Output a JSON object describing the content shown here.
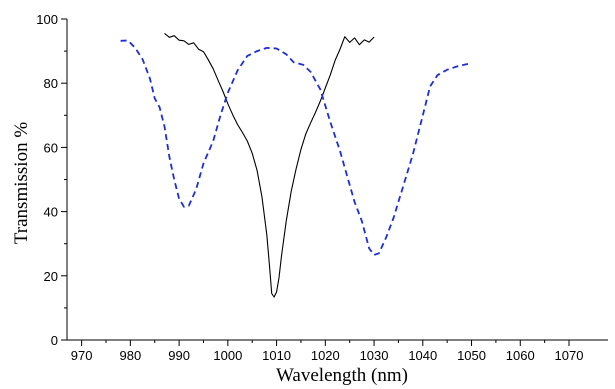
{
  "chart_data": {
    "type": "line",
    "xlabel": "Wavelength (nm)",
    "ylabel": "Transmission %",
    "xlim": [
      967,
      1078
    ],
    "ylim": [
      0,
      100
    ],
    "x_ticks": [
      970,
      980,
      990,
      1000,
      1010,
      1020,
      1030,
      1040,
      1050,
      1060,
      1070
    ],
    "y_ticks": [
      0,
      20,
      40,
      60,
      80,
      100
    ],
    "grid": false,
    "legend": "none",
    "series": [
      {
        "style": "solid",
        "color": "#000000",
        "points": [
          [
            987.0,
            95.5
          ],
          [
            988.0,
            94.3
          ],
          [
            989.0,
            94.8
          ],
          [
            990.0,
            93.4
          ],
          [
            991.0,
            93.2
          ],
          [
            992.0,
            92.1
          ],
          [
            993.0,
            92.6
          ],
          [
            994.0,
            90.6
          ],
          [
            995.0,
            89.8
          ],
          [
            996.0,
            87.3
          ],
          [
            997.0,
            84.5
          ],
          [
            998.0,
            80.9
          ],
          [
            999.0,
            77.4
          ],
          [
            1000.0,
            73.6
          ],
          [
            1001.0,
            70.2
          ],
          [
            1002.0,
            67.1
          ],
          [
            1003.0,
            64.6
          ],
          [
            1004.0,
            62.0
          ],
          [
            1005.0,
            58.2
          ],
          [
            1006.0,
            52.8
          ],
          [
            1007.0,
            44.5
          ],
          [
            1008.0,
            32.8
          ],
          [
            1008.6,
            22.0
          ],
          [
            1009.0,
            14.5
          ],
          [
            1009.5,
            13.4
          ],
          [
            1010.0,
            15.0
          ],
          [
            1010.5,
            19.4
          ],
          [
            1011.0,
            26.2
          ],
          [
            1012.0,
            37.2
          ],
          [
            1013.0,
            46.3
          ],
          [
            1014.0,
            53.3
          ],
          [
            1015.0,
            59.3
          ],
          [
            1016.0,
            64.2
          ],
          [
            1017.0,
            67.7
          ],
          [
            1018.0,
            71.0
          ],
          [
            1019.0,
            74.5
          ],
          [
            1020.0,
            78.5
          ],
          [
            1021.0,
            82.5
          ],
          [
            1022.0,
            87.1
          ],
          [
            1023.0,
            90.5
          ],
          [
            1024.0,
            94.5
          ],
          [
            1025.0,
            92.7
          ],
          [
            1026.0,
            94.1
          ],
          [
            1027.0,
            92.0
          ],
          [
            1028.0,
            93.5
          ],
          [
            1029.0,
            92.8
          ],
          [
            1030.0,
            94.4
          ]
        ]
      },
      {
        "style": "dashed",
        "color": "#1c2fd6",
        "points": [
          [
            978.0,
            93.2
          ],
          [
            979.5,
            93.3
          ],
          [
            981.0,
            91.0
          ],
          [
            982.5,
            87.5
          ],
          [
            984.0,
            81.5
          ],
          [
            985.0,
            75.3
          ],
          [
            986.0,
            72.5
          ],
          [
            987.0,
            66.5
          ],
          [
            988.0,
            57.0
          ],
          [
            989.0,
            50.0
          ],
          [
            990.0,
            44.0
          ],
          [
            991.0,
            41.5
          ],
          [
            992.0,
            41.8
          ],
          [
            993.5,
            47.0
          ],
          [
            995.0,
            55.0
          ],
          [
            997.0,
            62.0
          ],
          [
            998.5,
            70.0
          ],
          [
            1000.0,
            77.0
          ],
          [
            1002.0,
            84.0
          ],
          [
            1004.0,
            88.5
          ],
          [
            1006.0,
            90.0
          ],
          [
            1008.0,
            91.0
          ],
          [
            1010.0,
            90.8
          ],
          [
            1012.0,
            89.0
          ],
          [
            1013.5,
            86.5
          ],
          [
            1015.5,
            85.7
          ],
          [
            1017.0,
            83.5
          ],
          [
            1019.0,
            78.0
          ],
          [
            1021.0,
            68.0
          ],
          [
            1023.0,
            59.0
          ],
          [
            1024.5,
            51.0
          ],
          [
            1026.0,
            43.0
          ],
          [
            1027.5,
            37.0
          ],
          [
            1029.0,
            28.5
          ],
          [
            1030.0,
            26.5
          ],
          [
            1031.0,
            27.0
          ],
          [
            1032.5,
            32.0
          ],
          [
            1034.0,
            38.0
          ],
          [
            1036.0,
            48.0
          ],
          [
            1038.0,
            58.0
          ],
          [
            1040.0,
            70.0
          ],
          [
            1041.5,
            79.0
          ],
          [
            1043.0,
            82.5
          ],
          [
            1045.0,
            84.2
          ],
          [
            1047.0,
            85.2
          ],
          [
            1050.0,
            86.3
          ]
        ]
      }
    ]
  }
}
